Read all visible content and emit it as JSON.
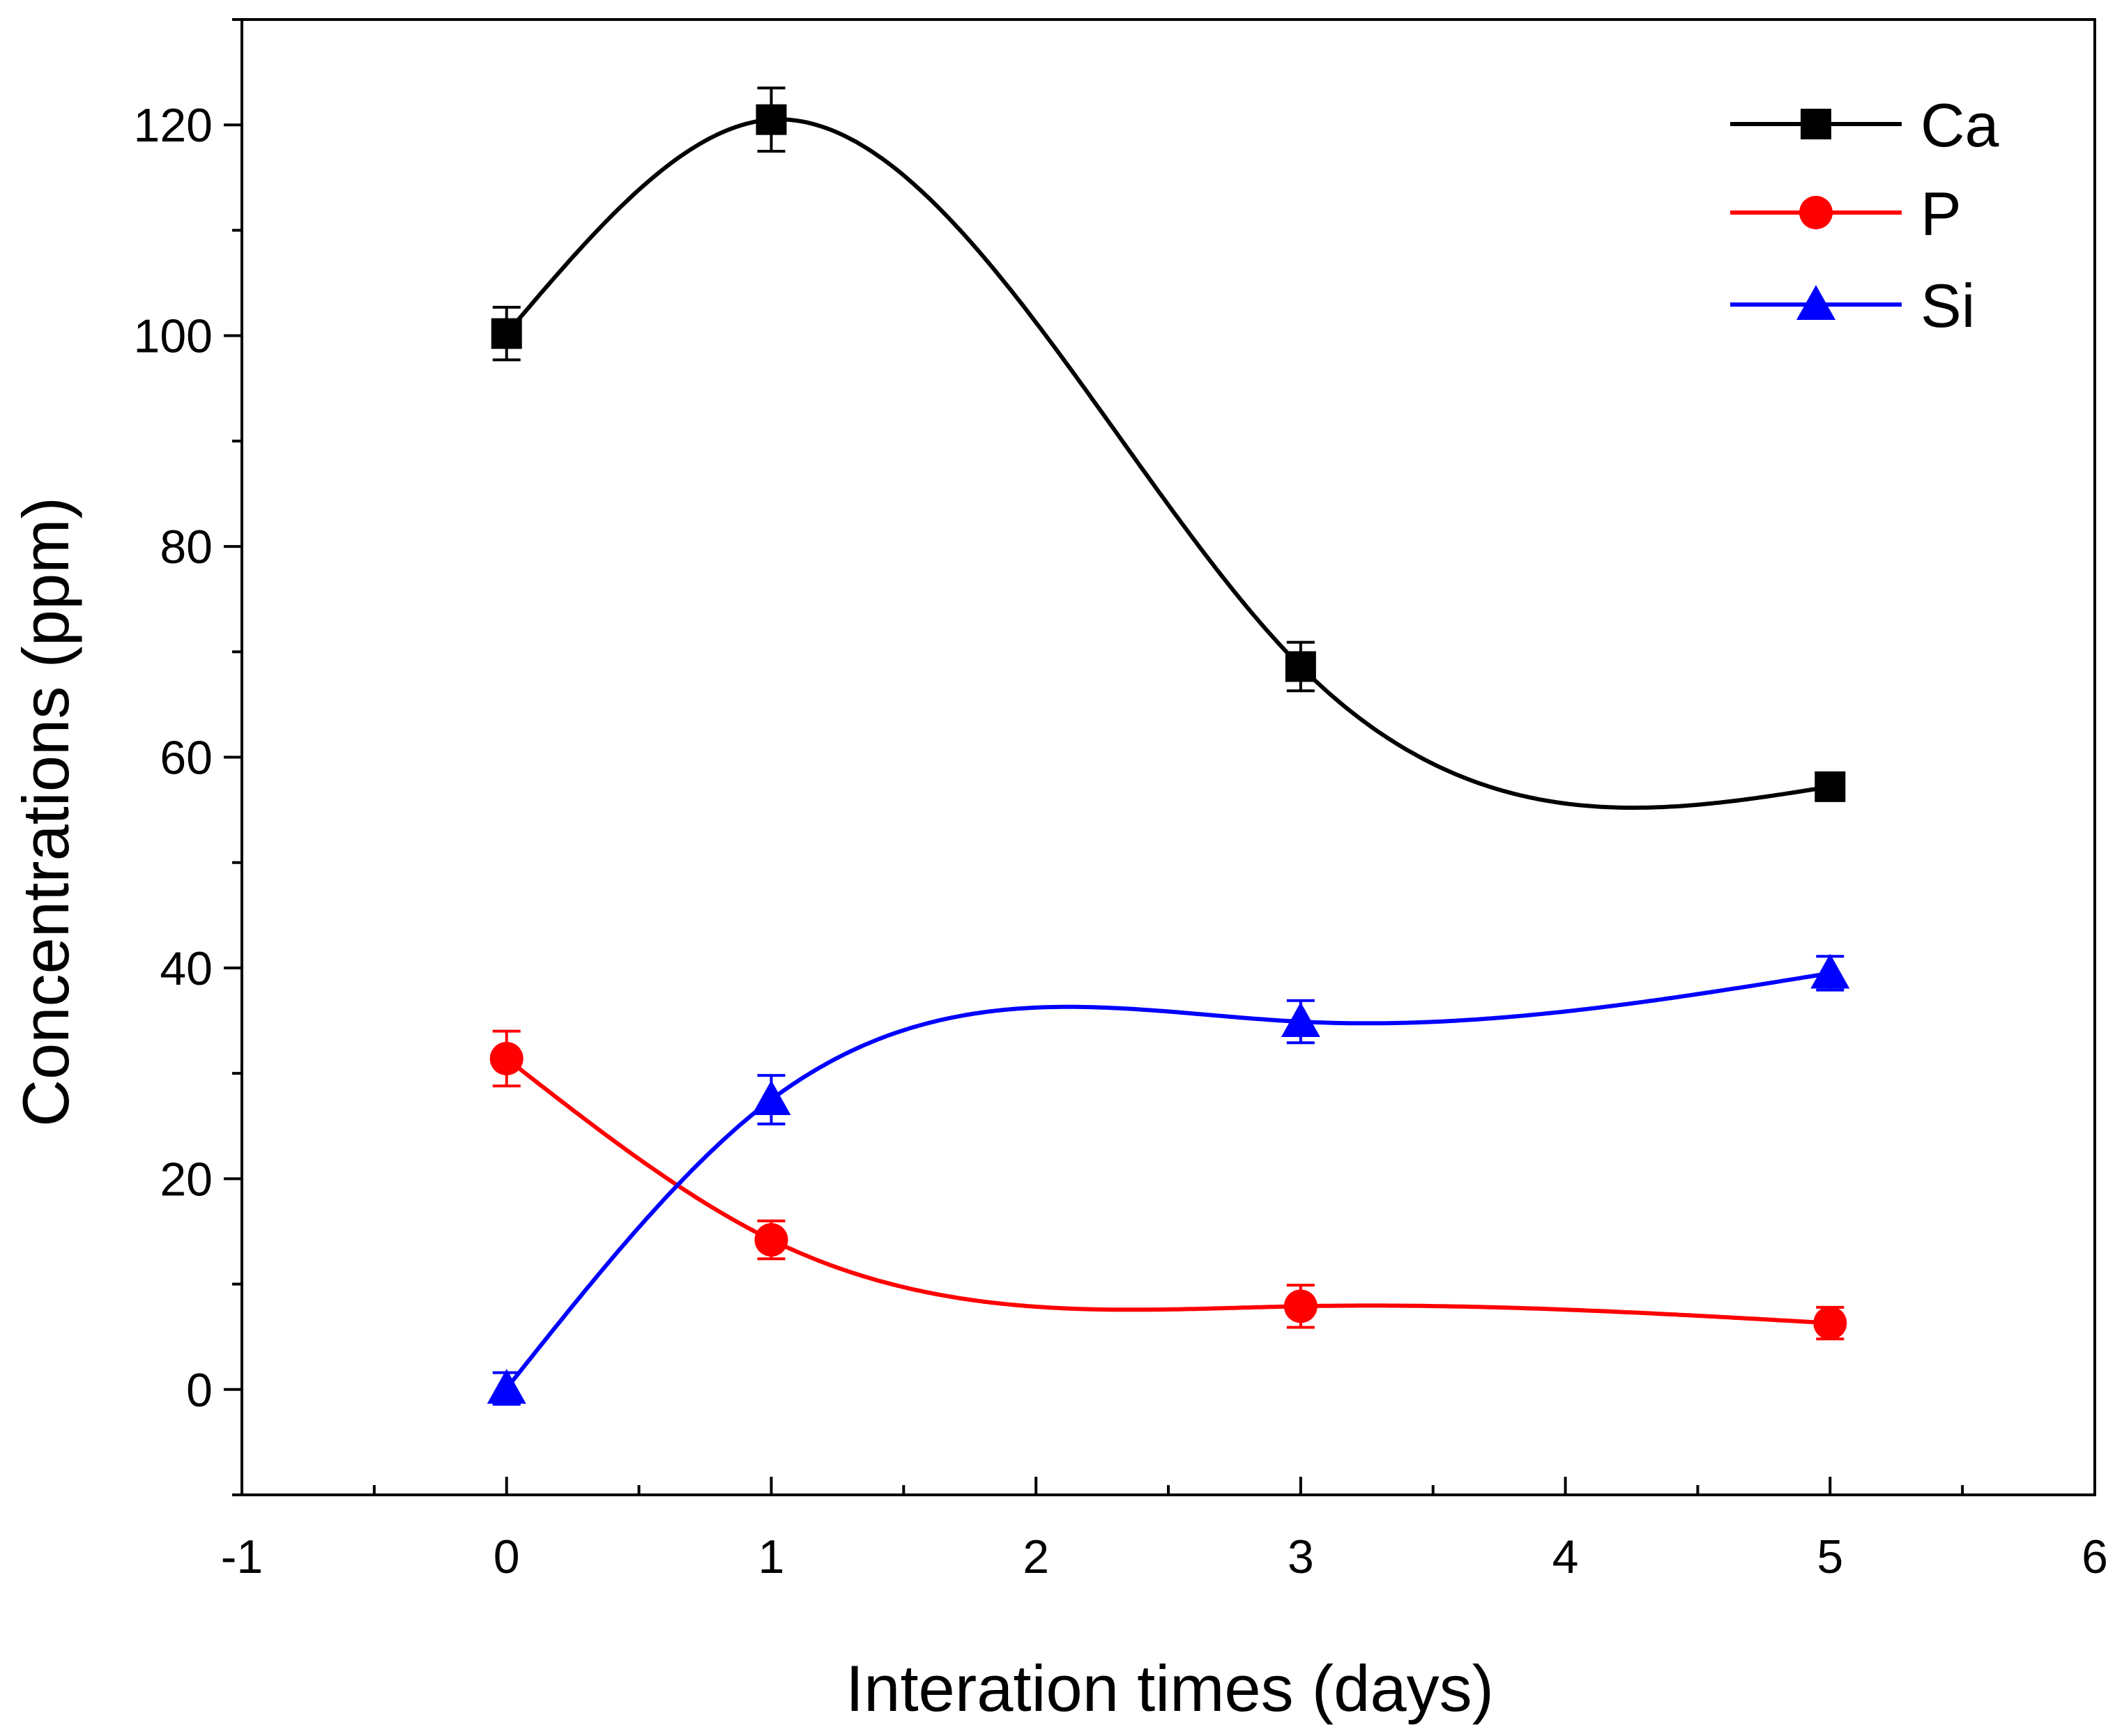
{
  "chart_data": {
    "type": "line",
    "title": "",
    "xlabel": "Interation times (days)",
    "ylabel": "Concentrations (ppm)",
    "xlim": [
      -1,
      6
    ],
    "ylim": [
      -10,
      130
    ],
    "xticks": [
      -1,
      0,
      1,
      2,
      3,
      4,
      5,
      6
    ],
    "xtick_labels": [
      "-1",
      "0",
      "1",
      "2",
      "3",
      "4",
      "5",
      "6"
    ],
    "yticks": [
      0,
      20,
      40,
      60,
      80,
      100,
      120
    ],
    "ytick_labels": [
      "0",
      "20",
      "40",
      "60",
      "80",
      "100",
      "120"
    ],
    "grid": false,
    "legend_position": "top-right",
    "x": [
      0,
      1,
      3,
      5
    ],
    "series": [
      {
        "name": "Ca",
        "color": "#000000",
        "marker": "square",
        "values": [
          100.2,
          120.5,
          68.6,
          57.2
        ],
        "errors": [
          2.5,
          3.0,
          2.3,
          0.8
        ]
      },
      {
        "name": "P",
        "color": "#ff0000",
        "marker": "circle",
        "values": [
          31.4,
          14.2,
          7.9,
          6.3
        ],
        "errors": [
          2.6,
          1.8,
          2.0,
          1.5
        ]
      },
      {
        "name": "Si",
        "color": "#0000ff",
        "marker": "triangle",
        "values": [
          0.1,
          27.5,
          34.9,
          39.5
        ],
        "errors": [
          1.5,
          2.3,
          2.0,
          1.6
        ]
      }
    ]
  }
}
